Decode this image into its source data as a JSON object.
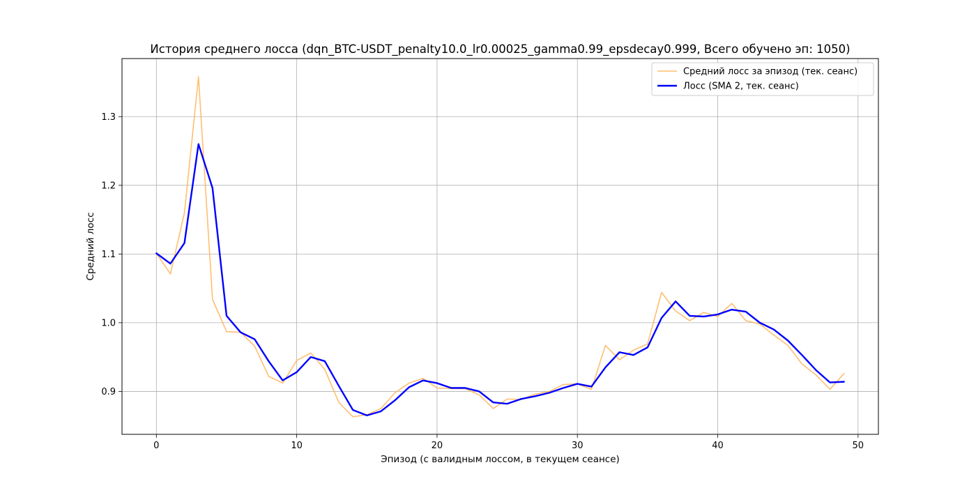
{
  "chart_data": {
    "type": "line",
    "title": "История среднего лосса (dqn_BTC-USDT_penalty10.0_lr0.00025_gamma0.99_epsdecay0.999, Всего обучено эп: 1050)",
    "xlabel": "Эпизод (с валидным лоссом, в текущем сеансе)",
    "ylabel": "Средний лосс",
    "xlim": [
      -2.45,
      51.45
    ],
    "ylim": [
      0.8375,
      1.3845
    ],
    "xticks": [
      0,
      10,
      20,
      30,
      40,
      50
    ],
    "xtick_labels": [
      "0",
      "10",
      "20",
      "30",
      "40",
      "50"
    ],
    "yticks": [
      0.9,
      1.0,
      1.1,
      1.2,
      1.3
    ],
    "ytick_labels": [
      "0.9",
      "1.0",
      "1.1",
      "1.2",
      "1.3"
    ],
    "grid": true,
    "legend_position": "top-right",
    "x": [
      0,
      1,
      2,
      3,
      4,
      5,
      6,
      7,
      8,
      9,
      10,
      11,
      12,
      13,
      14,
      15,
      16,
      17,
      18,
      19,
      20,
      21,
      22,
      23,
      24,
      25,
      26,
      27,
      28,
      29,
      30,
      31,
      32,
      33,
      34,
      35,
      36,
      37,
      38,
      39,
      40,
      41,
      42,
      43,
      44,
      45,
      46,
      47,
      48,
      49
    ],
    "series": [
      {
        "name": "Средний лосс за эпизод (тек. сеанс)",
        "color": "#ffb357",
        "values": [
          1.101,
          1.071,
          1.16,
          1.358,
          1.034,
          0.987,
          0.986,
          0.966,
          0.922,
          0.912,
          0.945,
          0.956,
          0.932,
          0.884,
          0.863,
          0.866,
          0.875,
          0.898,
          0.912,
          0.919,
          0.905,
          0.904,
          0.904,
          0.895,
          0.875,
          0.889,
          0.888,
          0.896,
          0.9,
          0.91,
          0.911,
          0.903,
          0.967,
          0.946,
          0.96,
          0.969,
          1.044,
          1.017,
          1.003,
          1.015,
          1.009,
          1.028,
          1.003,
          0.998,
          0.982,
          0.967,
          0.94,
          0.924,
          0.903,
          0.926
        ]
      },
      {
        "name": "Лосс (SMA 2, тек. сеанс)",
        "color": "#0000ff",
        "values": [
          1.101,
          1.086,
          1.116,
          1.26,
          1.196,
          1.01,
          0.986,
          0.976,
          0.944,
          0.916,
          0.928,
          0.95,
          0.944,
          0.908,
          0.873,
          0.865,
          0.871,
          0.887,
          0.906,
          0.916,
          0.912,
          0.905,
          0.905,
          0.9,
          0.884,
          0.882,
          0.889,
          0.893,
          0.898,
          0.905,
          0.911,
          0.907,
          0.935,
          0.957,
          0.953,
          0.964,
          1.007,
          1.031,
          1.01,
          1.009,
          1.012,
          1.019,
          1.016,
          1.0,
          0.99,
          0.974,
          0.953,
          0.931,
          0.913,
          0.914
        ]
      }
    ]
  }
}
